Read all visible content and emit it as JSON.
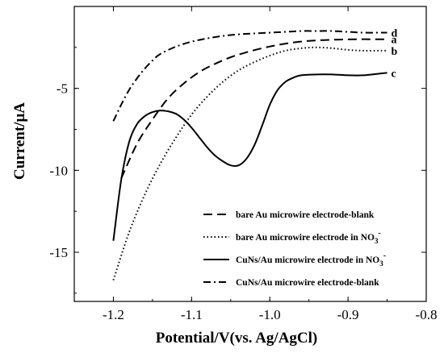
{
  "chart_data": {
    "type": "line",
    "xlabel": "Potential/V(vs. Ag/AgCl)",
    "ylabel": "Current/μA",
    "xlim": [
      -1.25,
      -0.8
    ],
    "ylim": [
      -18,
      0
    ],
    "xticks": [
      -1.2,
      -1.1,
      -1.0,
      -0.9,
      -0.8
    ],
    "xtick_labels": [
      "-1.2",
      "-1.1",
      "-1.0",
      "-0.9",
      "-0.8"
    ],
    "yticks": [
      -15,
      -10,
      -5
    ],
    "ytick_labels": [
      "-15",
      "-10",
      "-5"
    ],
    "grid": false,
    "legend_position": "bottom-right",
    "series": [
      {
        "name": "bare Au microwire electrode-blank",
        "tag": "a",
        "dash": "dashed",
        "x": [
          -1.19,
          -1.17,
          -1.15,
          -1.13,
          -1.11,
          -1.09,
          -1.07,
          -1.05,
          -1.03,
          -1.01,
          -0.99,
          -0.97,
          -0.95,
          -0.93,
          -0.91,
          -0.89,
          -0.87,
          -0.85
        ],
        "y": [
          -10.5,
          -8.4,
          -6.9,
          -5.6,
          -4.7,
          -4.0,
          -3.5,
          -3.1,
          -2.8,
          -2.55,
          -2.35,
          -2.2,
          -2.1,
          -2.05,
          -2.02,
          -2.0,
          -2.0,
          -2.0
        ]
      },
      {
        "name": "bare Au microwire electrode in NO3-",
        "tag": "b",
        "dash": "dotted",
        "x": [
          -1.2,
          -1.18,
          -1.16,
          -1.14,
          -1.12,
          -1.1,
          -1.08,
          -1.06,
          -1.04,
          -1.02,
          -1.0,
          -0.98,
          -0.96,
          -0.94,
          -0.92,
          -0.9,
          -0.88,
          -0.86,
          -0.85
        ],
        "y": [
          -16.7,
          -13.8,
          -11.5,
          -9.6,
          -8.0,
          -6.6,
          -5.5,
          -4.6,
          -3.9,
          -3.4,
          -3.0,
          -2.7,
          -2.55,
          -2.5,
          -2.55,
          -2.65,
          -2.7,
          -2.7,
          -2.7
        ]
      },
      {
        "name": "CuNs/Au microwire electrode in NO3-",
        "tag": "c",
        "dash": "solid",
        "x": [
          -1.2,
          -1.19,
          -1.18,
          -1.17,
          -1.16,
          -1.15,
          -1.14,
          -1.13,
          -1.12,
          -1.11,
          -1.1,
          -1.09,
          -1.08,
          -1.07,
          -1.06,
          -1.05,
          -1.04,
          -1.03,
          -1.02,
          -1.01,
          -1.0,
          -0.99,
          -0.98,
          -0.97,
          -0.96,
          -0.94,
          -0.92,
          -0.9,
          -0.88,
          -0.86,
          -0.85
        ],
        "y": [
          -14.3,
          -10.6,
          -8.3,
          -7.2,
          -6.7,
          -6.45,
          -6.35,
          -6.4,
          -6.55,
          -6.9,
          -7.4,
          -8.0,
          -8.6,
          -9.1,
          -9.45,
          -9.7,
          -9.7,
          -9.3,
          -8.5,
          -7.3,
          -6.0,
          -5.1,
          -4.6,
          -4.35,
          -4.2,
          -4.15,
          -4.15,
          -4.2,
          -4.2,
          -4.1,
          -4.05
        ]
      },
      {
        "name": "CuNs/Au microwire electrode-blank",
        "tag": "d",
        "dash": "dashdot",
        "x": [
          -1.2,
          -1.19,
          -1.18,
          -1.17,
          -1.16,
          -1.15,
          -1.14,
          -1.12,
          -1.1,
          -1.08,
          -1.06,
          -1.04,
          -1.02,
          -1.0,
          -0.98,
          -0.96,
          -0.94,
          -0.92,
          -0.9,
          -0.88,
          -0.86,
          -0.85
        ],
        "y": [
          -7.0,
          -6.0,
          -5.1,
          -4.4,
          -3.8,
          -3.3,
          -2.9,
          -2.45,
          -2.15,
          -1.95,
          -1.8,
          -1.7,
          -1.65,
          -1.6,
          -1.55,
          -1.5,
          -1.5,
          -1.5,
          -1.55,
          -1.6,
          -1.6,
          -1.6
        ]
      }
    ],
    "legend": [
      {
        "label": "bare Au microwire electrode-blank",
        "dash": "dashed",
        "superscript": ""
      },
      {
        "label": "bare Au microwire electrode in NO",
        "dash": "dotted",
        "subscript": "3",
        "superscript": "-"
      },
      {
        "label": "CuNs/Au microwire electrode in NO",
        "dash": "solid",
        "subscript": "3",
        "superscript": "-"
      },
      {
        "label": "CuNs/Au microwire electrode-blank",
        "dash": "dashdot",
        "superscript": ""
      }
    ]
  }
}
